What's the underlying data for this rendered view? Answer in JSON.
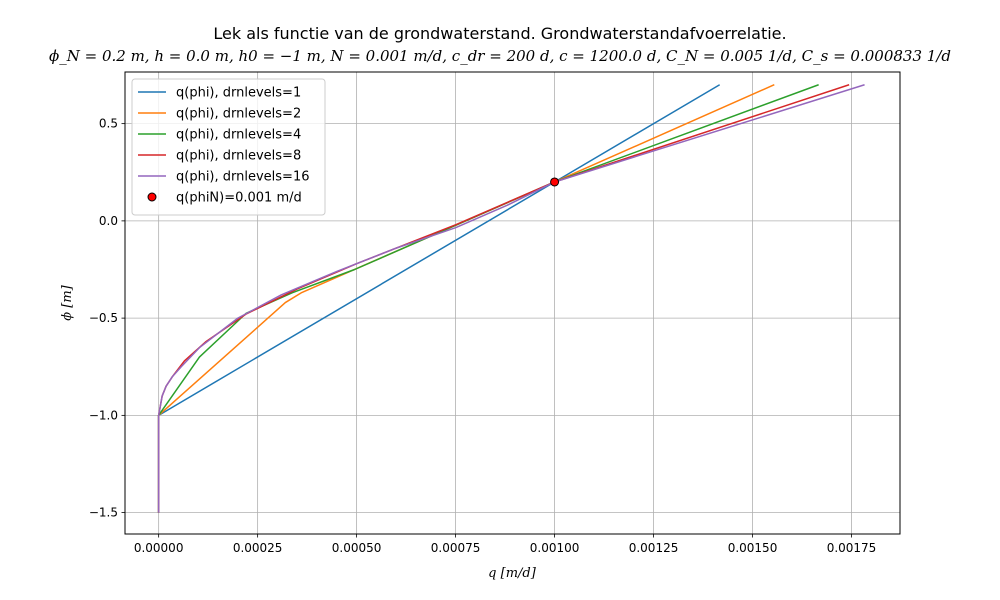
{
  "chart_data": {
    "type": "line",
    "title": "Lek als functie van de grondwaterstand. Grondwaterstandafvoerrelatie.",
    "subtitle": "ϕ_N = 0.2 m, h = 0.0 m, h0 = −1 m, N = 0.001 m/d, c_dr = 200 d, c = 1200.0 d, C_N = 0.005 1/d, C_s = 0.000833 1/d",
    "xlabel": "q [m/d]",
    "ylabel": "ϕ [m]",
    "xlim": [
      -8.5e-05,
      0.0018725
    ],
    "ylim": [
      -1.61,
      0.7655
    ],
    "xticks": [
      0,
      0.00025,
      0.0005,
      0.00075,
      0.001,
      0.00125,
      0.0015,
      0.00175
    ],
    "xtick_labels": [
      "0.00000",
      "0.00025",
      "0.00050",
      "0.00075",
      "0.00100",
      "0.00125",
      "0.00150",
      "0.00175"
    ],
    "yticks": [
      -1.5,
      -1.0,
      -0.5,
      0.0,
      0.5
    ],
    "ytick_labels": [
      "−1.5",
      "−1.0",
      "−0.5",
      "0.0",
      "0.5"
    ],
    "grid": true,
    "legend_position": "top-left",
    "series": [
      {
        "name": "q(phi), drnlevels=1",
        "color": "#1f77b4",
        "x": [
          0,
          0,
          0.001,
          0.001417
        ],
        "y": [
          -1.5,
          -1.0,
          0.2,
          0.7
        ]
      },
      {
        "name": "q(phi), drnlevels=2",
        "color": "#ff7f0e",
        "x": [
          0,
          0,
          0.00032,
          0.00036,
          0.001,
          0.001555
        ],
        "y": [
          -1.5,
          -1.0,
          -0.42,
          -0.37,
          0.2,
          0.7
        ]
      },
      {
        "name": "q(phi), drnlevels=4",
        "color": "#2ca02c",
        "x": [
          0,
          0,
          0.000103,
          0.000221,
          0.000337,
          0.000495,
          0.001,
          0.001667
        ],
        "y": [
          -1.5,
          -1.0,
          -0.7,
          -0.475,
          -0.37,
          -0.25,
          0.2,
          0.7
        ]
      },
      {
        "name": "q(phi), drnlevels=8",
        "color": "#d62728",
        "x": [
          0,
          0,
          8.9e-06,
          1.88e-05,
          3.5e-05,
          6.5e-05,
          0.00012,
          0.00022,
          0.00035,
          0.0005,
          0.00075,
          0.001,
          0.001744
        ],
        "y": [
          -1.5,
          -1.0,
          -0.9,
          -0.85,
          -0.8,
          -0.72,
          -0.62,
          -0.48,
          -0.35,
          -0.22,
          -0.02,
          0.2,
          0.7
        ]
      },
      {
        "name": "q(phi), drnlevels=16",
        "color": "#9467bd",
        "x": [
          0,
          0,
          8.9e-06,
          1.88e-05,
          3.5e-05,
          5.7e-05,
          0.000104,
          0.0002,
          0.00031,
          0.00045,
          0.0006,
          0.00075,
          0.00088,
          0.001,
          0.001783
        ],
        "y": [
          -1.5,
          -1.0,
          -0.9,
          -0.85,
          -0.8,
          -0.75,
          -0.65,
          -0.5,
          -0.38,
          -0.26,
          -0.14,
          -0.035,
          0.08,
          0.2,
          0.7
        ]
      }
    ],
    "points": [
      {
        "name": "q(phiN)=0.001 m/d",
        "x": 0.001,
        "y": 0.2,
        "color": "#ff0000",
        "edgecolor": "#000000"
      }
    ]
  }
}
